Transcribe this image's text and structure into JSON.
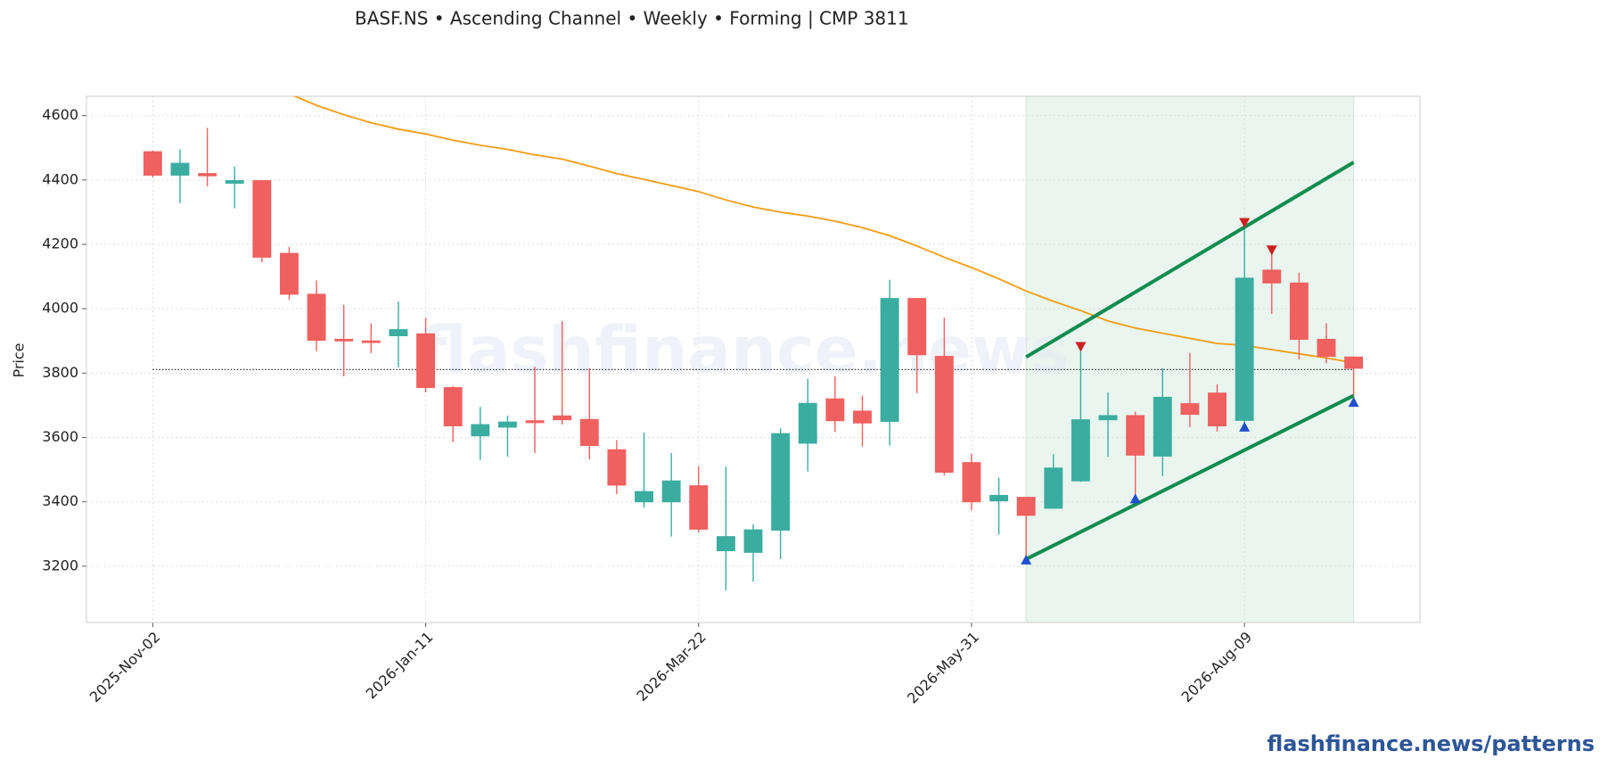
{
  "chart_data": {
    "type": "candlestick",
    "title": "BASF.NS  •  Ascending Channel  •  Weekly  •  Forming  |  CMP 3811",
    "ylabel": "Price",
    "watermark": "flashfinance.news",
    "footer": "flashfinance.news/patterns",
    "x": [
      "2025-Nov-02",
      "2025-Nov-09",
      "2025-Nov-16",
      "2025-Nov-23",
      "2025-Nov-30",
      "2025-Dec-07",
      "2025-Dec-14",
      "2025-Dec-21",
      "2025-Dec-28",
      "2026-Jan-04",
      "2026-Jan-11",
      "2026-Jan-18",
      "2026-Jan-25",
      "2026-Feb-01",
      "2026-Feb-08",
      "2026-Feb-15",
      "2026-Feb-22",
      "2026-Mar-01",
      "2026-Mar-08",
      "2026-Mar-15",
      "2026-Mar-22",
      "2026-Mar-29",
      "2026-Apr-05",
      "2026-Apr-12",
      "2026-Apr-19",
      "2026-Apr-26",
      "2026-May-03",
      "2026-May-10",
      "2026-May-17",
      "2026-May-24",
      "2026-May-31",
      "2026-Jun-07",
      "2026-Jun-14",
      "2026-Jun-21",
      "2026-Jun-28",
      "2026-Jul-05",
      "2026-Jul-12",
      "2026-Jul-19",
      "2026-Jul-26",
      "2026-Aug-02",
      "2026-Aug-09",
      "2026-Aug-16",
      "2026-Aug-23",
      "2026-Aug-30",
      "2026-Sep-06"
    ],
    "open": [
      4488,
      4415,
      4420,
      4390,
      4398,
      4172,
      4045,
      3905,
      3900,
      3916,
      3922,
      3755,
      3605,
      3632,
      3652,
      3667,
      3656,
      3562,
      3400,
      3400,
      3450,
      3248,
      3243,
      3312,
      3582,
      3720,
      3682,
      3650,
      4032,
      3852,
      3522,
      3403,
      3414,
      3380,
      3465,
      3655,
      3668,
      3542,
      3705,
      3738,
      3653,
      4120,
      4080,
      3905,
      3850
    ],
    "high": [
      4492,
      4495,
      4562,
      4442,
      4400,
      4192,
      4088,
      4012,
      3955,
      4022,
      3972,
      3760,
      3695,
      3668,
      3820,
      3962,
      3815,
      3592,
      3615,
      3552,
      3512,
      3510,
      3330,
      3628,
      3782,
      3790,
      3730,
      4090,
      4032,
      3972,
      3550,
      3475,
      3414,
      3548,
      3880,
      3740,
      3680,
      3815,
      3862,
      3765,
      4262,
      4175,
      4112,
      3955,
      3850
    ],
    "low": [
      4408,
      4328,
      4380,
      4312,
      4145,
      4028,
      3868,
      3790,
      3862,
      3818,
      3740,
      3585,
      3530,
      3540,
      3552,
      3640,
      3532,
      3424,
      3382,
      3292,
      3305,
      3125,
      3152,
      3222,
      3494,
      3617,
      3572,
      3575,
      3738,
      3482,
      3374,
      3298,
      3228,
      3378,
      3462,
      3540,
      3418,
      3480,
      3632,
      3618,
      3645,
      3984,
      3842,
      3830,
      3718
    ],
    "close": [
      4415,
      4452,
      4413,
      4398,
      4160,
      4045,
      3902,
      3900,
      3895,
      3935,
      3755,
      3636,
      3640,
      3648,
      3646,
      3655,
      3575,
      3452,
      3432,
      3465,
      3315,
      3292,
      3313,
      3612,
      3706,
      3652,
      3645,
      4032,
      3857,
      3492,
      3400,
      3420,
      3358,
      3505,
      3655,
      3668,
      3545,
      3725,
      3672,
      3636,
      4095,
      4080,
      3905,
      3852,
      3815
    ],
    "up_color": "#3aada0",
    "down_color": "#f0605f",
    "ma": {
      "color": "#f39c12",
      "values": [
        null,
        null,
        null,
        null,
        null,
        4668,
        4632,
        4603,
        4578,
        4558,
        4543,
        4524,
        4508,
        4495,
        4478,
        4465,
        4443,
        4420,
        4402,
        4383,
        4364,
        4338,
        4316,
        4300,
        4288,
        4272,
        4252,
        4227,
        4195,
        4160,
        4128,
        4093,
        4055,
        4023,
        3994,
        3962,
        3940,
        3924,
        3908,
        3892,
        3886,
        3873,
        3860,
        3847,
        3832
      ]
    },
    "cmp": 3811,
    "channel": {
      "color": "#118c4f",
      "shade": "#e9f5ee",
      "x": [
        "2026-Jun-14",
        "2026-Sep-06"
      ],
      "upper": [
        3850,
        4455
      ],
      "lower": [
        3222,
        3730
      ]
    },
    "swing_highs": {
      "color": "#cc1f1f",
      "x": [
        "2026-Jun-28",
        "2026-Aug-09",
        "2026-Aug-16"
      ],
      "values": [
        3880,
        4265,
        4180
      ]
    },
    "swing_lows": {
      "color": "#1f4fcc",
      "x": [
        "2026-Jun-14",
        "2026-Jul-12",
        "2026-Aug-09",
        "2026-Sep-06"
      ],
      "values": [
        3222,
        3412,
        3635,
        3712
      ]
    },
    "xlim": [
      "2025-Oct-16",
      "2026-Sep-23"
    ],
    "xticks": [
      "2025-Nov-02",
      "2026-Jan-11",
      "2026-Mar-22",
      "2026-May-31",
      "2026-Aug-09"
    ],
    "ylim": [
      3025,
      4660
    ],
    "yticks": [
      3200,
      3400,
      3600,
      3800,
      4000,
      4200,
      4400,
      4600
    ],
    "grid": true
  }
}
